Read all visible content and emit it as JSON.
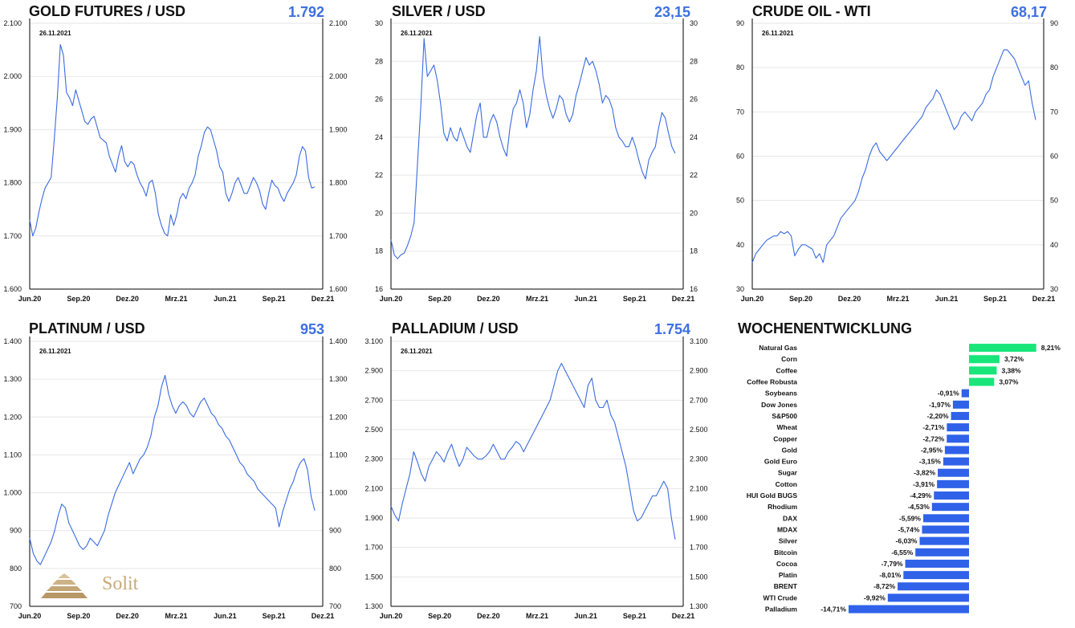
{
  "colors": {
    "line": "#3a6be0",
    "value": "#3d6fe0",
    "positive": "#18e67a",
    "negative": "#2f62e8"
  },
  "logo": {
    "text": "Solit"
  },
  "chart_data": [
    {
      "type": "line",
      "title": "GOLD FUTURES / USD",
      "current_value": "1.792",
      "date": "26.11.2021",
      "x_ticks": [
        "Jun.20",
        "Sep.20",
        "Dez.20",
        "Mrz.21",
        "Jun.21",
        "Sep.21",
        "Dez.21"
      ],
      "y_ticks": [
        "1.600",
        "1.700",
        "1.800",
        "1.900",
        "2.000",
        "2.100"
      ],
      "ylim": [
        1600,
        2100
      ],
      "series": [
        {
          "values": [
            1730,
            1700,
            1715,
            1745,
            1770,
            1790,
            1800,
            1810,
            1880,
            1960,
            2060,
            2040,
            1970,
            1960,
            1945,
            1975,
            1955,
            1935,
            1915,
            1910,
            1920,
            1925,
            1905,
            1885,
            1880,
            1875,
            1850,
            1835,
            1820,
            1850,
            1870,
            1840,
            1830,
            1840,
            1835,
            1815,
            1800,
            1790,
            1775,
            1800,
            1805,
            1780,
            1740,
            1720,
            1705,
            1700,
            1740,
            1720,
            1740,
            1770,
            1780,
            1770,
            1790,
            1800,
            1815,
            1850,
            1870,
            1895,
            1905,
            1900,
            1880,
            1860,
            1830,
            1820,
            1780,
            1765,
            1780,
            1800,
            1810,
            1795,
            1780,
            1780,
            1795,
            1810,
            1800,
            1785,
            1760,
            1750,
            1780,
            1805,
            1795,
            1790,
            1775,
            1765,
            1780,
            1790,
            1800,
            1815,
            1850,
            1868,
            1860,
            1810,
            1790,
            1792
          ]
        }
      ]
    },
    {
      "type": "line",
      "title": "SILVER / USD",
      "current_value": "23,15",
      "date": "26.11.2021",
      "x_ticks": [
        "Jun.20",
        "Sep.20",
        "Dez.20",
        "Mrz.21",
        "Jun.21",
        "Sep.21",
        "Dez.21"
      ],
      "y_ticks": [
        "16",
        "18",
        "20",
        "22",
        "24",
        "26",
        "28",
        "30"
      ],
      "ylim": [
        16,
        30
      ],
      "series": [
        {
          "values": [
            18.6,
            17.8,
            17.6,
            17.8,
            17.9,
            18.3,
            18.8,
            19.5,
            22.5,
            25.5,
            29.2,
            27.2,
            27.5,
            27.8,
            27.0,
            25.8,
            24.2,
            23.8,
            24.5,
            24.0,
            23.8,
            24.5,
            24.0,
            23.5,
            23.2,
            24.2,
            25.2,
            25.8,
            24.0,
            24.0,
            24.8,
            25.2,
            24.8,
            24.0,
            23.4,
            23.0,
            24.5,
            25.5,
            25.8,
            26.5,
            25.8,
            24.5,
            25.2,
            26.5,
            27.5,
            29.3,
            27.2,
            26.2,
            25.5,
            25.0,
            25.5,
            26.2,
            26.0,
            25.2,
            24.8,
            25.2,
            26.2,
            26.8,
            27.5,
            28.2,
            27.8,
            28.0,
            27.5,
            26.8,
            25.8,
            26.2,
            26.0,
            25.5,
            24.5,
            24.0,
            23.8,
            23.5,
            23.5,
            24.0,
            23.5,
            22.8,
            22.2,
            21.8,
            22.8,
            23.2,
            23.5,
            24.5,
            25.3,
            25.0,
            24.2,
            23.5,
            23.15
          ]
        }
      ]
    },
    {
      "type": "line",
      "title": "CRUDE OIL - WTI",
      "current_value": "68,17",
      "date": "26.11.2021",
      "x_ticks": [
        "Jun.20",
        "Sep.20",
        "Dez.20",
        "Mrz.21",
        "Jun.21",
        "Sep.21",
        "Dez.21"
      ],
      "y_ticks": [
        "30",
        "40",
        "50",
        "60",
        "70",
        "80",
        "90"
      ],
      "ylim": [
        30,
        90
      ],
      "series": [
        {
          "values": [
            36,
            38,
            39,
            40,
            41,
            41.5,
            42,
            42,
            43,
            42.5,
            43,
            42,
            37.5,
            39,
            40,
            40,
            39.5,
            39,
            37,
            38,
            36,
            40,
            41,
            42,
            44,
            46,
            47,
            48,
            49,
            50,
            52,
            55,
            57,
            60,
            62,
            63,
            61,
            60,
            59,
            60,
            61,
            62,
            63,
            64,
            65,
            66,
            67,
            68,
            69,
            71,
            72,
            73,
            75,
            74,
            72,
            70,
            68,
            66,
            67,
            69,
            70,
            69,
            68,
            70,
            71,
            72,
            74,
            75,
            78,
            80,
            82,
            84,
            84,
            83,
            82,
            80,
            78,
            76,
            77,
            72,
            68.17
          ]
        }
      ]
    },
    {
      "type": "line",
      "title": "PLATINUM / USD",
      "current_value": "953",
      "date": "26.11.2021",
      "x_ticks": [
        "Jun.20",
        "Sep.20",
        "Dez.20",
        "Mrz.21",
        "Jun.21",
        "Sep.21",
        "Dez.21"
      ],
      "y_ticks": [
        "700",
        "800",
        "900",
        "1.000",
        "1.100",
        "1.200",
        "1.300",
        "1.400"
      ],
      "ylim": [
        700,
        1400
      ],
      "series": [
        {
          "values": [
            880,
            840,
            820,
            810,
            830,
            850,
            870,
            900,
            940,
            970,
            960,
            920,
            900,
            880,
            860,
            850,
            860,
            880,
            870,
            860,
            880,
            900,
            940,
            970,
            1000,
            1020,
            1040,
            1060,
            1080,
            1050,
            1070,
            1090,
            1100,
            1120,
            1150,
            1200,
            1230,
            1280,
            1310,
            1260,
            1230,
            1210,
            1230,
            1240,
            1230,
            1210,
            1200,
            1220,
            1240,
            1250,
            1230,
            1210,
            1200,
            1180,
            1170,
            1150,
            1140,
            1120,
            1100,
            1080,
            1070,
            1050,
            1040,
            1030,
            1010,
            1000,
            990,
            980,
            970,
            960,
            910,
            950,
            980,
            1010,
            1030,
            1060,
            1080,
            1090,
            1060,
            990,
            953
          ]
        }
      ]
    },
    {
      "type": "line",
      "title": "PALLADIUM / USD",
      "current_value": "1.754",
      "date": "26.11.2021",
      "x_ticks": [
        "Jun.20",
        "Sep.20",
        "Dez.20",
        "Mrz.21",
        "Jun.21",
        "Sep.21",
        "Dez.21"
      ],
      "y_ticks": [
        "1.300",
        "1.500",
        "1.700",
        "1.900",
        "2.100",
        "2.300",
        "2.500",
        "2.700",
        "2.900",
        "3.100"
      ],
      "ylim": [
        1300,
        3100
      ],
      "series": [
        {
          "values": [
            1980,
            1920,
            1880,
            2000,
            2100,
            2200,
            2350,
            2280,
            2200,
            2150,
            2250,
            2300,
            2350,
            2320,
            2280,
            2350,
            2400,
            2320,
            2250,
            2300,
            2380,
            2350,
            2320,
            2300,
            2300,
            2320,
            2350,
            2400,
            2350,
            2300,
            2300,
            2350,
            2380,
            2420,
            2400,
            2350,
            2400,
            2450,
            2500,
            2550,
            2600,
            2650,
            2700,
            2800,
            2900,
            2950,
            2900,
            2850,
            2800,
            2750,
            2700,
            2650,
            2800,
            2850,
            2700,
            2650,
            2650,
            2700,
            2600,
            2550,
            2450,
            2350,
            2250,
            2100,
            1950,
            1880,
            1900,
            1950,
            2000,
            2050,
            2050,
            2100,
            2150,
            2100,
            1900,
            1754
          ]
        }
      ]
    },
    {
      "type": "bar",
      "title": "WOCHENENTWICKLUNG",
      "categories": [
        "Natural Gas",
        "Corn",
        "Coffee",
        "Coffee Robusta",
        "Soybeans",
        "Dow Jones",
        "S&P500",
        "Wheat",
        "Copper",
        "Gold",
        "Gold Euro",
        "Sugar",
        "Cotton",
        "HUI Gold BUGS",
        "Rhodium",
        "DAX",
        "MDAX",
        "Silver",
        "Bitcoin",
        "Cocoa",
        "Platin",
        "BRENT",
        "WTI Crude",
        "Palladium"
      ],
      "values": [
        8.21,
        3.72,
        3.38,
        3.07,
        -0.91,
        -1.97,
        -2.2,
        -2.71,
        -2.72,
        -2.95,
        -3.15,
        -3.82,
        -3.91,
        -4.29,
        -4.53,
        -5.59,
        -5.74,
        -6.03,
        -6.55,
        -7.79,
        -8.01,
        -8.72,
        -9.92,
        -14.71
      ],
      "labels": [
        "8,21%",
        "3,72%",
        "3,38%",
        "3,07%",
        "-0,91%",
        "-1,97%",
        "-2,20%",
        "-2,71%",
        "-2,72%",
        "-2,95%",
        "-3,15%",
        "-3,82%",
        "-3,91%",
        "-4,29%",
        "-4,53%",
        "-5,59%",
        "-5,74%",
        "-6,03%",
        "-6,55%",
        "-7,79%",
        "-8,01%",
        "-8,72%",
        "-9,92%",
        "-14,71%"
      ]
    }
  ]
}
